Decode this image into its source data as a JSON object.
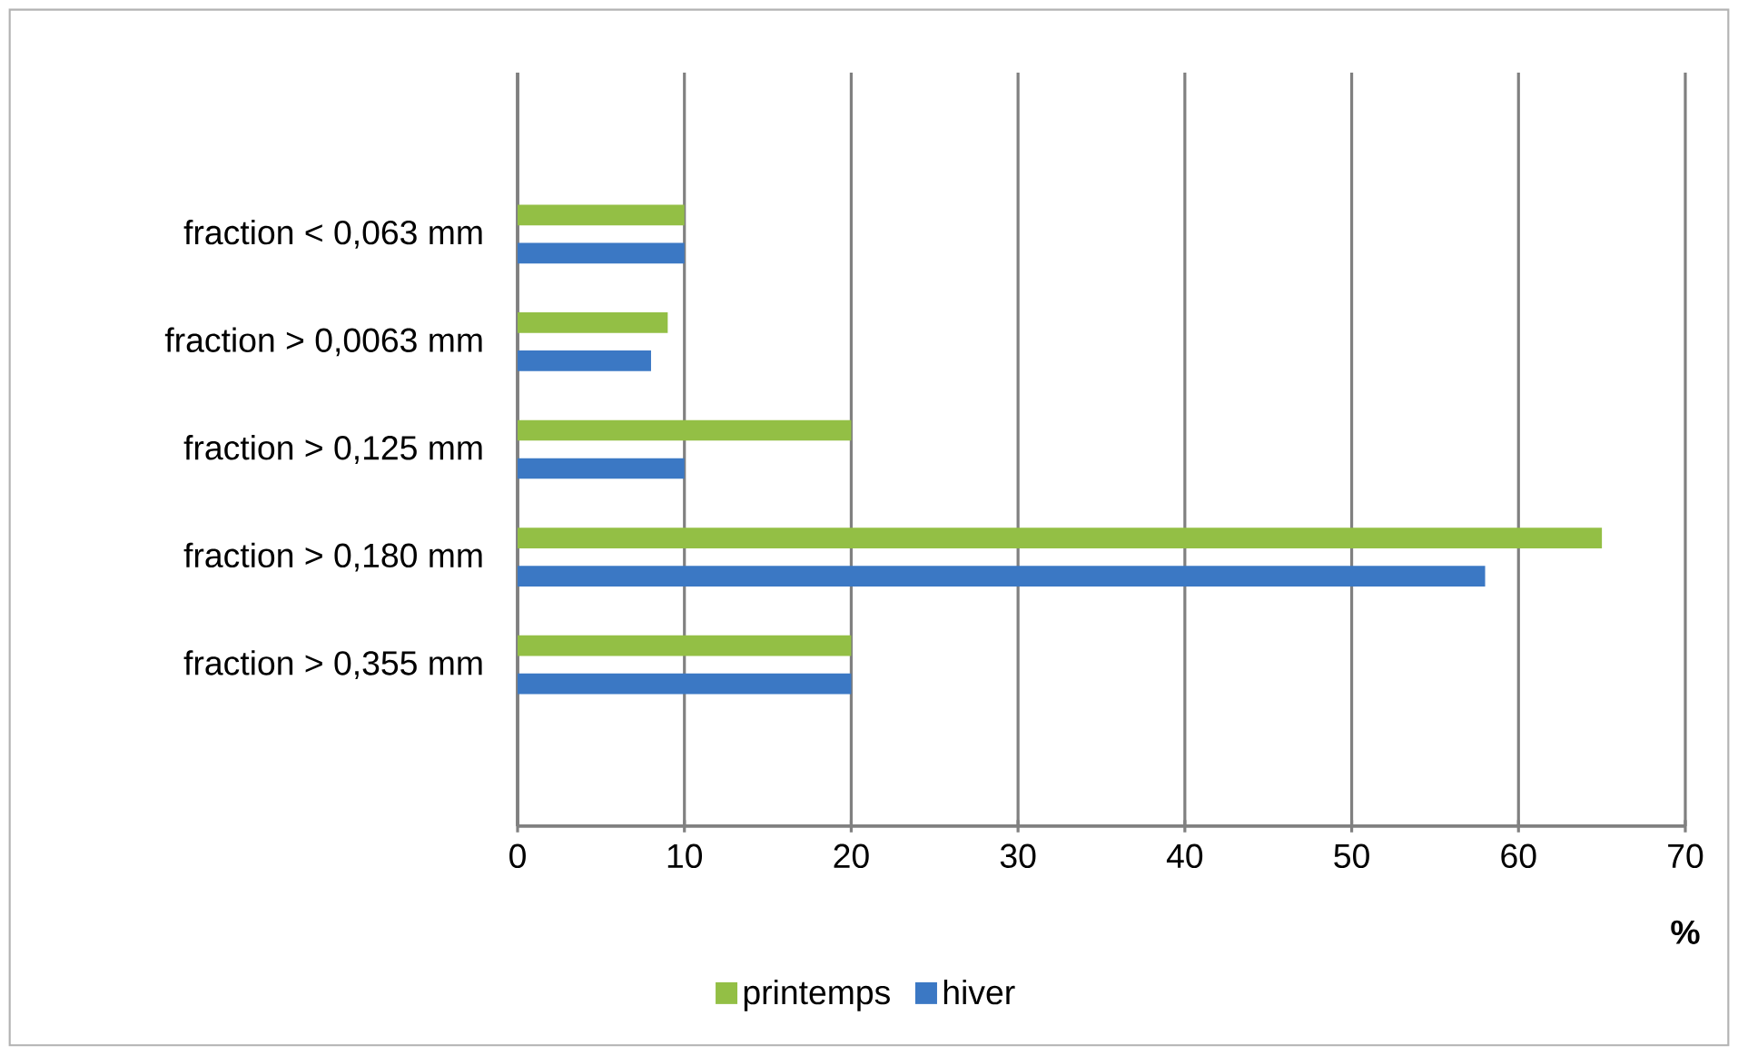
{
  "chart_data": {
    "type": "bar",
    "orientation": "horizontal",
    "categories": [
      null,
      "fraction < 0,063 mm",
      "fraction > 0,0063 mm",
      "fraction > 0,125 mm",
      "fraction > 0,180 mm",
      "fraction > 0,355 mm",
      null
    ],
    "series": [
      {
        "name": "printemps",
        "color": "#93bf45",
        "values": [
          null,
          10,
          9,
          20,
          65,
          20,
          null
        ]
      },
      {
        "name": "hiver",
        "color": "#3b78c4",
        "values": [
          null,
          10,
          8,
          10,
          58,
          20,
          null
        ]
      }
    ],
    "xlim": [
      0,
      70
    ],
    "xticks": [
      0,
      10,
      20,
      30,
      40,
      50,
      60,
      70
    ],
    "xlabel": "%",
    "grid": "x",
    "legend": "bottom"
  }
}
